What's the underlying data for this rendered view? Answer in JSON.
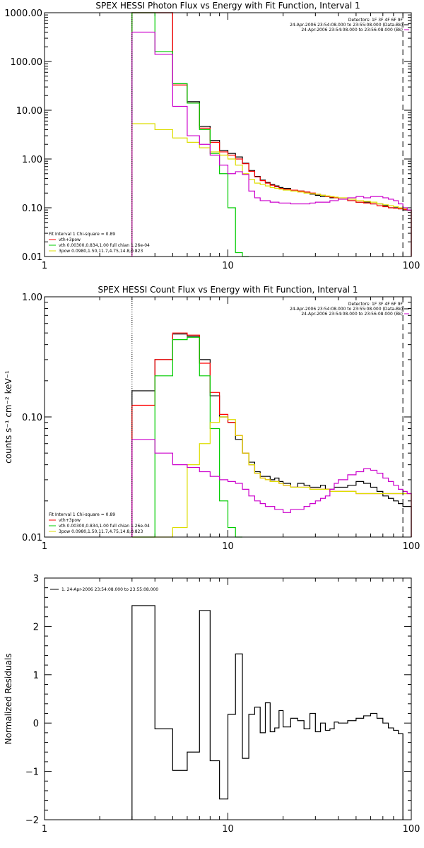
{
  "chart_data": [
    {
      "type": "line",
      "step": true,
      "title": "SPEX HESSI Photon Flux vs Energy with Fit Function, Interval 1",
      "xlabel": "",
      "ylabel": "",
      "xscale": "log",
      "yscale": "log",
      "xlim": [
        1,
        100
      ],
      "ylim": [
        0.01,
        1000
      ],
      "xticks": [
        "1",
        "10",
        "100"
      ],
      "yticks": [
        "0.01",
        "0.10",
        "1.00",
        "10.00",
        "100.00",
        "1000.00"
      ],
      "edges": [
        3,
        4,
        5,
        6,
        7,
        8,
        9,
        10,
        11,
        12,
        13,
        14,
        15,
        16,
        17,
        18,
        19,
        20,
        22,
        24,
        26,
        28,
        30,
        32,
        34,
        36,
        38,
        40,
        45,
        50,
        55,
        60,
        65,
        70,
        75,
        80,
        85,
        90,
        95,
        100
      ],
      "series": [
        {
          "name": "",
          "color": "#000000",
          "values": [
            1000,
            1000,
            35,
            15,
            4.7,
            2.4,
            1.5,
            1.3,
            1.1,
            0.82,
            0.58,
            0.44,
            0.37,
            0.33,
            0.3,
            0.28,
            0.26,
            0.25,
            0.23,
            0.22,
            0.21,
            0.19,
            0.18,
            0.17,
            0.17,
            0.16,
            0.16,
            0.15,
            0.14,
            0.13,
            0.13,
            0.12,
            0.12,
            0.11,
            0.1,
            0.1,
            0.095,
            0.09,
            0.088
          ]
        },
        {
          "name": "vth+3pow",
          "color": "#ff0000",
          "values": [
            1000,
            1000,
            33,
            14,
            4.3,
            2.2,
            1.4,
            1.2,
            1.0,
            0.8,
            0.56,
            0.43,
            0.36,
            0.32,
            0.29,
            0.27,
            0.25,
            0.24,
            0.23,
            0.22,
            0.21,
            0.2,
            0.19,
            0.18,
            0.17,
            0.165,
            0.16,
            0.15,
            0.14,
            0.13,
            0.125,
            0.12,
            0.11,
            0.105,
            0.1,
            0.098,
            0.095,
            0.092,
            0.09
          ]
        },
        {
          "name": "vth 0.00300,0.834,1.00   full chian 1.26e-04",
          "color": "#00cc00",
          "values": [
            1000,
            160,
            35,
            14,
            4.0,
            1.3,
            0.5,
            0.1,
            0.012,
            0.004
          ]
        },
        {
          "name": "3pow 0.0980,1.50,11.7,4.75,14.8,0.823",
          "color": "#dddd00",
          "values": [
            5.3,
            4.0,
            2.7,
            2.2,
            1.7,
            1.4,
            1.2,
            1.0,
            0.75,
            0.5,
            0.38,
            0.32,
            0.3,
            0.28,
            0.26,
            0.25,
            0.24,
            0.23,
            0.22,
            0.21,
            0.2,
            0.195,
            0.19,
            0.18,
            0.175,
            0.17,
            0.165,
            0.16,
            0.15,
            0.14,
            0.135,
            0.13,
            0.12,
            0.115,
            0.11,
            0.105,
            0.1,
            0.095,
            0.09
          ]
        },
        {
          "name": "",
          "color": "#cc00cc",
          "values": [
            400,
            140,
            12,
            3.0,
            2.0,
            1.2,
            0.75,
            0.5,
            0.55,
            0.48,
            0.22,
            0.16,
            0.14,
            0.14,
            0.13,
            0.13,
            0.125,
            0.125,
            0.12,
            0.12,
            0.12,
            0.125,
            0.13,
            0.13,
            0.13,
            0.14,
            0.14,
            0.15,
            0.16,
            0.17,
            0.16,
            0.17,
            0.17,
            0.16,
            0.15,
            0.14,
            0.12,
            0.1,
            0.09
          ]
        }
      ],
      "fit_label": "Fit Interval 1     Chi-square = 0.89",
      "background_text": [
        "Detectors: 1F 3F 4F 6F 9F",
        "24-Apr-2006 23:54:08.000 to 23:55:08.000 (Data-Bk)",
        "24-Apr-2006 23:54:08.000 to 23:56:08.000 (Bk)"
      ],
      "vline_dotted": 3,
      "vline_dashed": 90
    },
    {
      "type": "line",
      "step": true,
      "title": "SPEX HESSI Count Flux vs Energy with Fit Function, Interval 1",
      "xlabel": "",
      "ylabel": "counts s⁻¹ cm⁻² keV⁻¹",
      "xscale": "log",
      "yscale": "log",
      "xlim": [
        1,
        100
      ],
      "ylim": [
        0.01,
        1.0
      ],
      "xticks": [
        "1",
        "10",
        "100"
      ],
      "yticks": [
        "0.01",
        "0.10",
        "1.00"
      ],
      "edges": [
        3,
        4,
        5,
        6,
        7,
        8,
        9,
        10,
        11,
        12,
        13,
        14,
        15,
        16,
        17,
        18,
        19,
        20,
        22,
        24,
        26,
        28,
        30,
        32,
        34,
        36,
        38,
        40,
        45,
        50,
        55,
        60,
        65,
        70,
        75,
        80,
        85,
        90,
        95,
        100
      ],
      "series": [
        {
          "name": "",
          "color": "#000000",
          "values": [
            0.165,
            0.3,
            0.49,
            0.47,
            0.3,
            0.15,
            0.1,
            0.09,
            0.065,
            0.05,
            0.042,
            0.035,
            0.032,
            0.032,
            0.03,
            0.031,
            0.029,
            0.028,
            0.026,
            0.028,
            0.027,
            0.026,
            0.026,
            0.027,
            0.025,
            0.025,
            0.026,
            0.026,
            0.027,
            0.029,
            0.028,
            0.026,
            0.024,
            0.022,
            0.021,
            0.02,
            0.019,
            0.018,
            0.018
          ]
        },
        {
          "name": "vth+3pow",
          "color": "#ff0000",
          "values": [
            0.125,
            0.3,
            0.5,
            0.48,
            0.28,
            0.16,
            0.105,
            0.09,
            0.07,
            0.05,
            0.04,
            0.034,
            0.031,
            0.03,
            0.029,
            0.029,
            0.028,
            0.027,
            0.026,
            0.026,
            0.026,
            0.025,
            0.025,
            0.025,
            0.025,
            0.024,
            0.024,
            0.024,
            0.024,
            0.023,
            0.023,
            0.023,
            0.023,
            0.023,
            0.023,
            0.023,
            0.023,
            0.023,
            0.023
          ]
        },
        {
          "name": "vth 0.00300,0.834,1.00   full chian 1.26e-04",
          "color": "#00cc00",
          "values": [
            0.01,
            0.22,
            0.44,
            0.46,
            0.22,
            0.08,
            0.02,
            0.012,
            0.006
          ]
        },
        {
          "name": "3pow 0.0980,1.50,11.7,4.75,14.8,0.823",
          "color": "#dddd00",
          "values": [
            0.01,
            0.01,
            0.012,
            0.04,
            0.06,
            0.09,
            0.1,
            0.095,
            0.07,
            0.05,
            0.04,
            0.034,
            0.031,
            0.03,
            0.029,
            0.029,
            0.028,
            0.027,
            0.026,
            0.026,
            0.026,
            0.025,
            0.025,
            0.025,
            0.025,
            0.024,
            0.024,
            0.024,
            0.024,
            0.023,
            0.023,
            0.023,
            0.023,
            0.023,
            0.023,
            0.023,
            0.023,
            0.023,
            0.023
          ]
        },
        {
          "name": "",
          "color": "#cc00cc",
          "values": [
            0.065,
            0.05,
            0.04,
            0.038,
            0.035,
            0.032,
            0.03,
            0.029,
            0.028,
            0.025,
            0.022,
            0.02,
            0.019,
            0.018,
            0.018,
            0.017,
            0.017,
            0.016,
            0.017,
            0.017,
            0.018,
            0.019,
            0.02,
            0.021,
            0.022,
            0.025,
            0.028,
            0.03,
            0.033,
            0.035,
            0.037,
            0.036,
            0.034,
            0.031,
            0.029,
            0.027,
            0.025,
            0.024,
            0.023
          ]
        }
      ],
      "fit_label": "Fit Interval 1     Chi-square = 0.89",
      "background_text": [
        "Detectors: 1F 3F 4F 6F 9F",
        "24-Apr-2006 23:54:08.000 to 23:55:08.000 (Data-Bk)",
        "24-Apr-2006 23:54:08.000 to 23:56:08.000 (Bk)"
      ],
      "vline_dotted": 3,
      "vline_dashed": 90
    },
    {
      "type": "line",
      "step": true,
      "title": "",
      "xlabel": "",
      "ylabel": "Normalized Residuals",
      "xscale": "log",
      "yscale": "linear",
      "xlim": [
        1,
        100
      ],
      "ylim": [
        -2,
        3
      ],
      "xticks": [
        "1",
        "10",
        "100"
      ],
      "yticks": [
        "-2",
        "-1",
        "0",
        "1",
        "2",
        "3"
      ],
      "edges": [
        3,
        4,
        5,
        6,
        7,
        8,
        9,
        10,
        11,
        12,
        13,
        14,
        15,
        16,
        17,
        18,
        19,
        20,
        22,
        24,
        26,
        28,
        30,
        32,
        34,
        36,
        38,
        40,
        45,
        50,
        55,
        60,
        65,
        70,
        75,
        80,
        85,
        90
      ],
      "series": [
        {
          "name": "1. 24-Apr-2006 23:54:08.000 to 23:55:08.000",
          "color": "#000000",
          "values": [
            2.43,
            -0.12,
            -0.98,
            -0.6,
            2.33,
            -0.78,
            -1.57,
            0.18,
            1.43,
            -0.73,
            0.18,
            0.33,
            -0.2,
            0.42,
            -0.18,
            -0.1,
            0.26,
            -0.08,
            0.1,
            0.05,
            -0.12,
            0.2,
            -0.18,
            0.0,
            -0.15,
            -0.12,
            0.02,
            0.0,
            0.05,
            0.1,
            0.15,
            0.2,
            0.1,
            0.0,
            -0.1,
            -0.15,
            -0.22
          ]
        }
      ]
    }
  ]
}
